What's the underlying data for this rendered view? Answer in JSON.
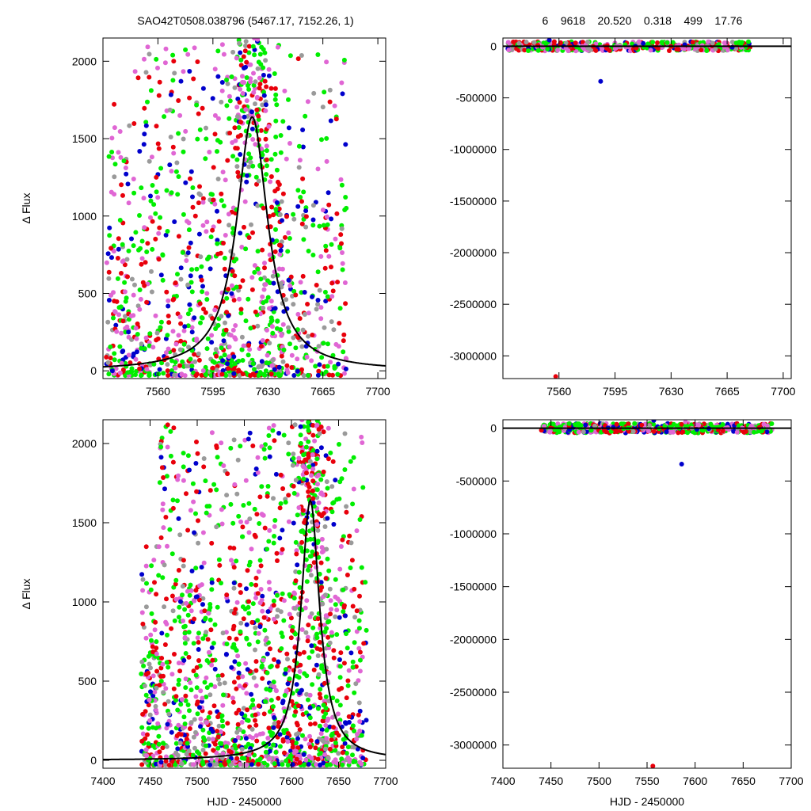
{
  "header": {
    "title_left": "SAO42T0508.038796 (5467.17, 7152.26,    1)",
    "title_right": "6    9618    20.520    0.318    499    17.76"
  },
  "colors": {
    "red": "#e8000b",
    "green": "#00ee00",
    "blue": "#0000cc",
    "violet": "#e066d4",
    "grey": "#9a9a9a",
    "model": "#000000"
  },
  "chart_data": [
    {
      "id": "top-left",
      "type": "scatter",
      "title": "",
      "xlabel": "",
      "ylabel": "Δ Flux",
      "xlim": [
        7525,
        7705
      ],
      "ylim": [
        -50,
        2150
      ],
      "xticks": [
        7560,
        7595,
        7630,
        7665,
        7700
      ],
      "yticks": [
        0,
        500,
        1000,
        1500,
        2000
      ],
      "grid": false,
      "model": {
        "shape": "peak",
        "peak_x": 7620,
        "peak_y": 1640,
        "width": 12,
        "x_range": [
          7525,
          7705
        ]
      },
      "points": {
        "description_free": true,
        "x_range": [
          7527,
          7680
        ],
        "y_range": [
          -30,
          2150
        ],
        "clusters": [
          {
            "x": [
              7527,
              7545
            ],
            "ymax": 1760,
            "n": 150
          },
          {
            "x": [
              7545,
              7600
            ],
            "ymax": 2150,
            "n": 420
          },
          {
            "x": [
              7600,
              7640
            ],
            "ymax": 2150,
            "n": 560
          },
          {
            "x": [
              7640,
              7680
            ],
            "ymax": 2100,
            "n": 230
          }
        ]
      }
    },
    {
      "id": "top-right",
      "type": "scatter",
      "title": "",
      "xlabel": "",
      "ylabel": "",
      "xlim": [
        7525,
        7705
      ],
      "ylim": [
        -3220000,
        80000
      ],
      "xticks": [
        7560,
        7595,
        7630,
        7665,
        7700
      ],
      "yticks": [
        0,
        -500000,
        -1000000,
        -1500000,
        -2000000,
        -2500000,
        -3000000
      ],
      "grid": false,
      "zero_line": 0,
      "outliers": [
        {
          "x": 7586,
          "y": -340000,
          "color": "blue"
        },
        {
          "x": 7558,
          "y": -3200000,
          "color": "red"
        },
        {
          "x": 7554,
          "y": 60000,
          "color": "blue"
        },
        {
          "x": 7610,
          "y": 45000,
          "color": "violet"
        }
      ],
      "band": {
        "x_range": [
          7527,
          7680
        ],
        "y_range": [
          -45000,
          45000
        ],
        "n": 420
      }
    },
    {
      "id": "bottom-left",
      "type": "scatter",
      "title": "",
      "xlabel": "HJD - 2450000",
      "ylabel": "Δ Flux",
      "xlim": [
        7400,
        7700
      ],
      "ylim": [
        -50,
        2150
      ],
      "xticks": [
        7400,
        7450,
        7500,
        7550,
        7600,
        7650,
        7700
      ],
      "yticks": [
        0,
        500,
        1000,
        1500,
        2000
      ],
      "grid": false,
      "model": {
        "shape": "peak",
        "peak_x": 7620,
        "peak_y": 1640,
        "width": 12,
        "x_range": [
          7400,
          7700
        ]
      },
      "points": {
        "clusters": [
          {
            "x": [
              7440,
              7460
            ],
            "ymax": 1400,
            "n": 140
          },
          {
            "x": [
              7460,
              7600
            ],
            "ymax": 2150,
            "n": 950
          },
          {
            "x": [
              7600,
              7640
            ],
            "ymax": 2150,
            "n": 520
          },
          {
            "x": [
              7640,
              7680
            ],
            "ymax": 2100,
            "n": 210
          }
        ]
      }
    },
    {
      "id": "bottom-right",
      "type": "scatter",
      "title": "",
      "xlabel": "HJD - 2450000",
      "ylabel": "",
      "xlim": [
        7400,
        7700
      ],
      "ylim": [
        -3220000,
        80000
      ],
      "xticks": [
        7400,
        7450,
        7500,
        7550,
        7600,
        7650,
        7700
      ],
      "yticks": [
        0,
        -500000,
        -1000000,
        -1500000,
        -2000000,
        -2500000,
        -3000000
      ],
      "grid": false,
      "zero_line": 0,
      "outliers": [
        {
          "x": 7586,
          "y": -340000,
          "color": "blue"
        },
        {
          "x": 7556,
          "y": -3200000,
          "color": "red"
        },
        {
          "x": 7557,
          "y": 75000,
          "color": "blue"
        },
        {
          "x": 7590,
          "y": 60000,
          "color": "violet"
        }
      ],
      "band": {
        "x_range": [
          7440,
          7680
        ],
        "y_range": [
          -45000,
          45000
        ],
        "n": 520
      }
    }
  ]
}
